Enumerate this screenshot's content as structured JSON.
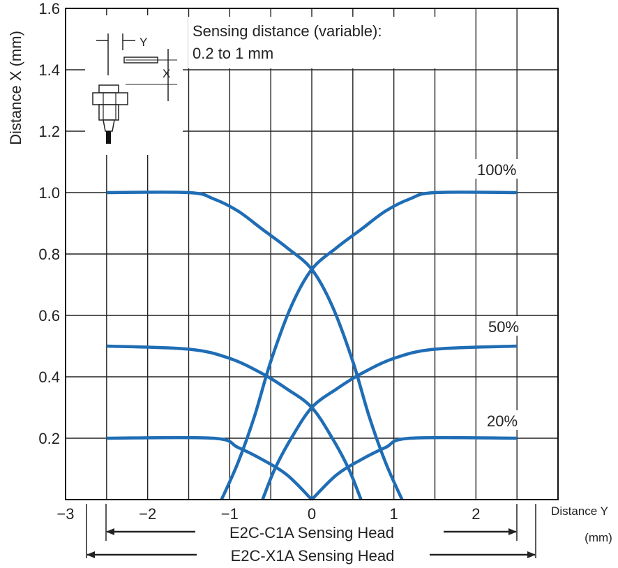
{
  "chart_data": {
    "type": "line",
    "title": "",
    "annotation_lines": [
      "Sensing distance (variable):",
      "0.2 to 1 mm"
    ],
    "xlabel": "Distance Y",
    "xunit": "(mm)",
    "ylabel": "Distance X (mm)",
    "xlim": [
      -3,
      3
    ],
    "ylim": [
      0,
      1.6
    ],
    "x_ticks": [
      -3,
      -2,
      -1,
      0,
      1,
      2
    ],
    "x_tick_labels": [
      "−3",
      "−2",
      "−1",
      "0",
      "1",
      "2"
    ],
    "y_ticks": [
      0.2,
      0.4,
      0.6,
      0.8,
      1.0,
      1.2,
      1.4,
      1.6
    ],
    "y_tick_labels": [
      "0.2",
      "0.4",
      "0.6",
      "0.8",
      "1.0",
      "1.2",
      "1.4",
      "1.6"
    ],
    "grid": true,
    "line_color": "#1f6db5",
    "series": [
      {
        "name": "100%",
        "points": [
          [
            -2.5,
            1.0
          ],
          [
            -1.5,
            1.0
          ],
          [
            -1.2,
            0.98
          ],
          [
            -0.9,
            0.94
          ],
          [
            -0.6,
            0.88
          ],
          [
            -0.3,
            0.82
          ],
          [
            0.0,
            0.75
          ],
          [
            0.25,
            0.63
          ],
          [
            0.5,
            0.45
          ],
          [
            0.7,
            0.27
          ],
          [
            0.9,
            0.12
          ],
          [
            1.1,
            0.0
          ]
        ]
      },
      {
        "name": "100%",
        "points": [
          [
            -1.1,
            0.0
          ],
          [
            -0.9,
            0.12
          ],
          [
            -0.7,
            0.27
          ],
          [
            -0.5,
            0.45
          ],
          [
            -0.25,
            0.63
          ],
          [
            0.0,
            0.75
          ],
          [
            0.3,
            0.82
          ],
          [
            0.6,
            0.88
          ],
          [
            0.9,
            0.94
          ],
          [
            1.2,
            0.98
          ],
          [
            1.5,
            1.0
          ],
          [
            2.5,
            1.0
          ]
        ]
      },
      {
        "name": "50%",
        "points": [
          [
            -2.5,
            0.5
          ],
          [
            -1.5,
            0.49
          ],
          [
            -1.0,
            0.46
          ],
          [
            -0.6,
            0.41
          ],
          [
            -0.3,
            0.36
          ],
          [
            0.0,
            0.3
          ],
          [
            0.25,
            0.2
          ],
          [
            0.45,
            0.1
          ],
          [
            0.6,
            0.0
          ]
        ]
      },
      {
        "name": "50%",
        "points": [
          [
            -0.6,
            0.0
          ],
          [
            -0.45,
            0.1
          ],
          [
            -0.25,
            0.2
          ],
          [
            0.0,
            0.3
          ],
          [
            0.3,
            0.36
          ],
          [
            0.6,
            0.41
          ],
          [
            1.0,
            0.46
          ],
          [
            1.5,
            0.49
          ],
          [
            2.5,
            0.5
          ]
        ]
      },
      {
        "name": "20%",
        "points": [
          [
            -2.5,
            0.2
          ],
          [
            -1.2,
            0.2
          ],
          [
            -0.9,
            0.17
          ],
          [
            -0.6,
            0.13
          ],
          [
            -0.3,
            0.08
          ],
          [
            0.0,
            0.0
          ]
        ]
      },
      {
        "name": "20%",
        "points": [
          [
            0.0,
            0.0
          ],
          [
            0.3,
            0.08
          ],
          [
            0.6,
            0.13
          ],
          [
            0.9,
            0.17
          ],
          [
            1.2,
            0.2
          ],
          [
            2.5,
            0.2
          ]
        ]
      }
    ],
    "level_labels": [
      "100%",
      "50%",
      "20%"
    ],
    "range_arrows": [
      {
        "label": "E2C-C1A Sensing Head",
        "from": -2.5,
        "to": 2.5
      },
      {
        "label": "E2C-X1A Sensing Head",
        "from": -2.75,
        "to": 2.75
      }
    ],
    "inset_labels": [
      "Y",
      "X"
    ]
  }
}
